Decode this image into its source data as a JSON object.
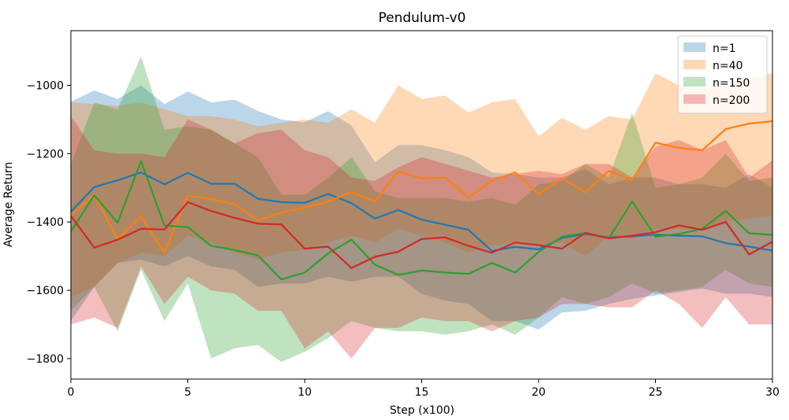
{
  "chart_data": {
    "type": "line",
    "title": "Pendulum-v0",
    "xlabel": "Step (x100)",
    "ylabel": "Average Return",
    "xlim": [
      0,
      30
    ],
    "ylim": [
      -1860,
      -840
    ],
    "x_ticks": [
      0,
      5,
      10,
      15,
      20,
      25,
      30
    ],
    "y_ticks": [
      -1800,
      -1600,
      -1400,
      -1200,
      -1000
    ],
    "grid": false,
    "legend_position": "top-right",
    "x": [
      0,
      1,
      2,
      3,
      4,
      5,
      6,
      7,
      8,
      9,
      10,
      11,
      12,
      13,
      14,
      15,
      16,
      17,
      18,
      19,
      20,
      21,
      22,
      23,
      24,
      25,
      26,
      27,
      28,
      29,
      30
    ],
    "series": [
      {
        "name": "n=1",
        "color": "#1f77b4",
        "fill_alpha": 0.3,
        "mean": [
          -1370,
          -1298,
          -1278,
          -1255,
          -1290,
          -1256,
          -1288,
          -1288,
          -1332,
          -1342,
          -1344,
          -1318,
          -1345,
          -1390,
          -1365,
          -1393,
          -1408,
          -1423,
          -1485,
          -1473,
          -1480,
          -1447,
          -1435,
          -1445,
          -1442,
          -1437,
          -1440,
          -1442,
          -1462,
          -1472,
          -1484
        ],
        "upper": [
          -1048,
          -1015,
          -1040,
          -1000,
          -1055,
          -1018,
          -1050,
          -1042,
          -1075,
          -1100,
          -1108,
          -1075,
          -1118,
          -1225,
          -1175,
          -1175,
          -1190,
          -1210,
          -1255,
          -1260,
          -1270,
          -1270,
          -1245,
          -1290,
          -1270,
          -1270,
          -1290,
          -1290,
          -1300,
          -1260,
          -1300
        ],
        "lower": [
          -1690,
          -1590,
          -1520,
          -1510,
          -1530,
          -1500,
          -1530,
          -1540,
          -1590,
          -1580,
          -1580,
          -1560,
          -1575,
          -1560,
          -1560,
          -1610,
          -1630,
          -1640,
          -1690,
          -1690,
          -1715,
          -1665,
          -1660,
          -1640,
          -1625,
          -1615,
          -1605,
          -1595,
          -1610,
          -1610,
          -1620
        ]
      },
      {
        "name": "n=40",
        "color": "#ff7f0e",
        "fill_alpha": 0.3,
        "mean": [
          -1380,
          -1320,
          -1450,
          -1383,
          -1490,
          -1323,
          -1333,
          -1348,
          -1395,
          -1373,
          -1358,
          -1340,
          -1313,
          -1340,
          -1252,
          -1272,
          -1270,
          -1328,
          -1280,
          -1255,
          -1318,
          -1272,
          -1313,
          -1250,
          -1278,
          -1168,
          -1183,
          -1190,
          -1128,
          -1112,
          -1105
        ],
        "upper": [
          -1050,
          -1055,
          -1060,
          -1050,
          -1070,
          -1090,
          -1090,
          -1100,
          -1120,
          -1110,
          -1100,
          -1110,
          -1070,
          -1110,
          -1000,
          -1040,
          -1030,
          -1080,
          -1050,
          -1040,
          -1150,
          -1095,
          -1130,
          -1090,
          -1100,
          -965,
          -1000,
          -1010,
          -1000,
          -980,
          -965
        ],
        "lower": [
          -1620,
          -1590,
          -1520,
          -1490,
          -1500,
          -1440,
          -1460,
          -1490,
          -1510,
          -1490,
          -1480,
          -1460,
          -1440,
          -1460,
          -1420,
          -1440,
          -1460,
          -1490,
          -1470,
          -1460,
          -1470,
          -1460,
          -1500,
          -1440,
          -1450,
          -1420,
          -1420,
          -1420,
          -1400,
          -1390,
          -1380
        ]
      },
      {
        "name": "n=150",
        "color": "#2ca02c",
        "fill_alpha": 0.3,
        "mean": [
          -1428,
          -1322,
          -1402,
          -1222,
          -1410,
          -1415,
          -1470,
          -1482,
          -1498,
          -1568,
          -1548,
          -1492,
          -1452,
          -1525,
          -1555,
          -1542,
          -1548,
          -1552,
          -1520,
          -1548,
          -1488,
          -1443,
          -1432,
          -1448,
          -1340,
          -1443,
          -1435,
          -1420,
          -1368,
          -1433,
          -1438
        ],
        "upper": [
          -1230,
          -1050,
          -1070,
          -915,
          -1130,
          -1120,
          -1130,
          -1170,
          -1210,
          -1320,
          -1320,
          -1270,
          -1210,
          -1310,
          -1330,
          -1330,
          -1330,
          -1340,
          -1330,
          -1350,
          -1290,
          -1280,
          -1230,
          -1270,
          -1080,
          -1300,
          -1290,
          -1270,
          -1200,
          -1280,
          -1270
        ],
        "lower": [
          -1660,
          -1590,
          -1720,
          -1540,
          -1690,
          -1580,
          -1800,
          -1770,
          -1760,
          -1810,
          -1780,
          -1740,
          -1690,
          -1710,
          -1720,
          -1720,
          -1730,
          -1720,
          -1700,
          -1730,
          -1680,
          -1620,
          -1640,
          -1620,
          -1580,
          -1610,
          -1600,
          -1590,
          -1540,
          -1580,
          -1590
        ]
      },
      {
        "name": "n=200",
        "color": "#d62728",
        "fill_alpha": 0.3,
        "mean": [
          -1382,
          -1475,
          -1452,
          -1420,
          -1422,
          -1342,
          -1368,
          -1388,
          -1405,
          -1407,
          -1478,
          -1472,
          -1535,
          -1502,
          -1487,
          -1450,
          -1445,
          -1470,
          -1490,
          -1460,
          -1468,
          -1478,
          -1432,
          -1448,
          -1440,
          -1430,
          -1410,
          -1423,
          -1400,
          -1495,
          -1458
        ],
        "upper": [
          -1090,
          -1190,
          -1200,
          -1200,
          -1210,
          -1100,
          -1130,
          -1170,
          -1140,
          -1130,
          -1190,
          -1210,
          -1270,
          -1280,
          -1240,
          -1210,
          -1230,
          -1250,
          -1270,
          -1260,
          -1250,
          -1260,
          -1230,
          -1230,
          -1270,
          -1180,
          -1160,
          -1190,
          -1160,
          -1270,
          -1220
        ],
        "lower": [
          -1700,
          -1680,
          -1710,
          -1530,
          -1640,
          -1560,
          -1600,
          -1610,
          -1660,
          -1660,
          -1770,
          -1720,
          -1800,
          -1710,
          -1710,
          -1680,
          -1690,
          -1690,
          -1720,
          -1690,
          -1680,
          -1640,
          -1640,
          -1650,
          -1650,
          -1600,
          -1640,
          -1710,
          -1620,
          -1700,
          -1700
        ]
      }
    ]
  }
}
